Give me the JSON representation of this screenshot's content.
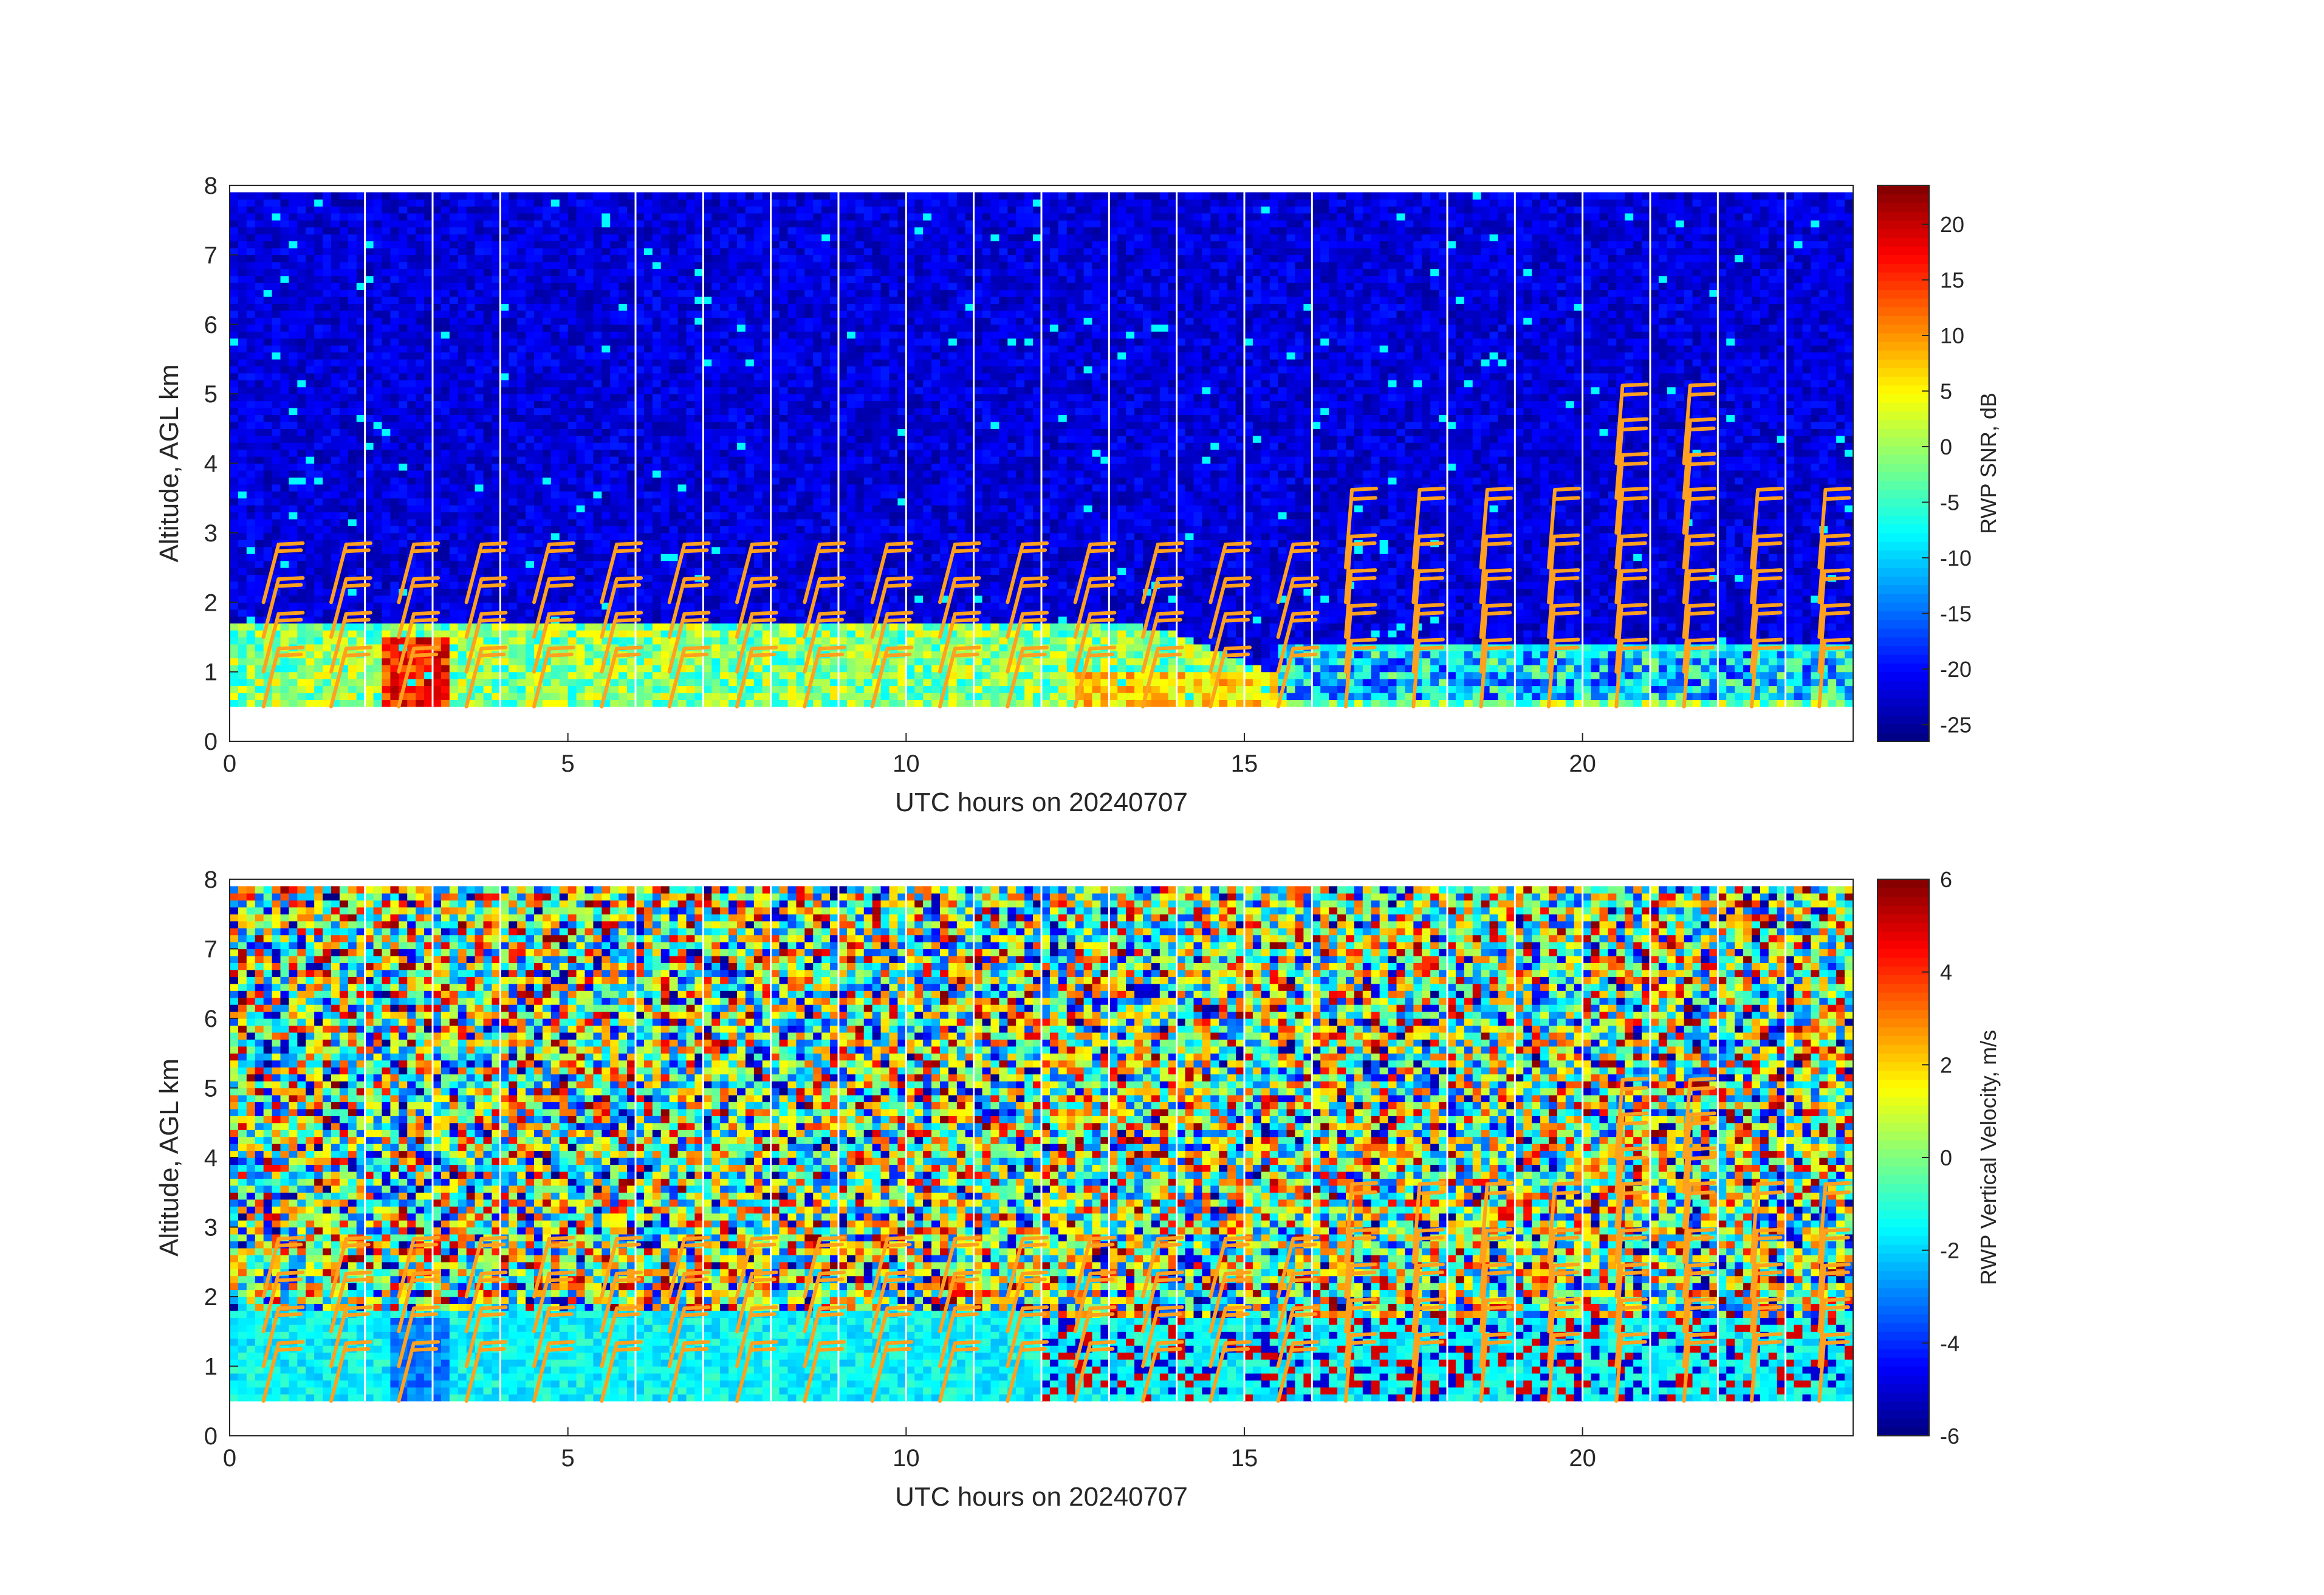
{
  "chart_data": [
    {
      "type": "heatmap",
      "panel": "top",
      "xlabel": "UTC hours on 20240707",
      "ylabel": "Altitude, AGL km",
      "xlim": [
        0,
        24
      ],
      "ylim": [
        0,
        8
      ],
      "x_ticks": [
        0,
        5,
        10,
        15,
        20
      ],
      "y_ticks": [
        0,
        1,
        2,
        3,
        4,
        5,
        6,
        7,
        8
      ],
      "data_altitude_range_km": [
        0.5,
        7.9
      ],
      "colormap": "jet",
      "colorbar": {
        "label": "RWP SNR, dB",
        "range": [
          -26.5,
          23.5
        ],
        "ticks": [
          20,
          15,
          10,
          5,
          0,
          -5,
          -10,
          -15,
          -20,
          -25
        ]
      },
      "gap_lines_hours": [
        2,
        3,
        4,
        6,
        7,
        8,
        9,
        10,
        11,
        12,
        13,
        14,
        15,
        16,
        18,
        19,
        20,
        21,
        22,
        23
      ],
      "high_snr_layer": {
        "description_values": [
          {
            "hour": 0,
            "top_km": 1.6
          },
          {
            "hour": 3,
            "top_km": 1.75
          },
          {
            "hour": 10,
            "top_km": 1.7
          },
          {
            "hour": 13,
            "top_km": 1.7
          },
          {
            "hour": 14,
            "top_km": 1.5
          },
          {
            "hour": 15,
            "top_km": 1.1
          },
          {
            "hour": 16,
            "top_km": 0.6
          },
          {
            "hour": 18,
            "top_km": 0.6
          },
          {
            "hour": 24,
            "top_km": 0.6
          }
        ]
      },
      "wind_barb_color": "#ffa01e"
    },
    {
      "type": "heatmap",
      "panel": "bottom",
      "xlabel": "UTC hours on 20240707",
      "ylabel": "Altitude, AGL km",
      "xlim": [
        0,
        24
      ],
      "ylim": [
        0,
        8
      ],
      "x_ticks": [
        0,
        5,
        10,
        15,
        20
      ],
      "y_ticks": [
        0,
        1,
        2,
        3,
        4,
        5,
        6,
        7,
        8
      ],
      "data_altitude_range_km": [
        0.5,
        7.9
      ],
      "colormap": "jet",
      "colorbar": {
        "label": "RWP Vertical Velocity, m/s",
        "range": [
          -6,
          6
        ],
        "ticks": [
          6,
          4,
          2,
          0,
          -2,
          -4,
          -6
        ]
      },
      "gap_lines_hours": [
        2,
        3,
        4,
        6,
        7,
        8,
        9,
        10,
        11,
        12,
        13,
        14,
        15,
        16,
        18,
        19,
        20,
        21,
        22,
        23
      ],
      "wind_barb_color": "#ffa01e"
    }
  ]
}
